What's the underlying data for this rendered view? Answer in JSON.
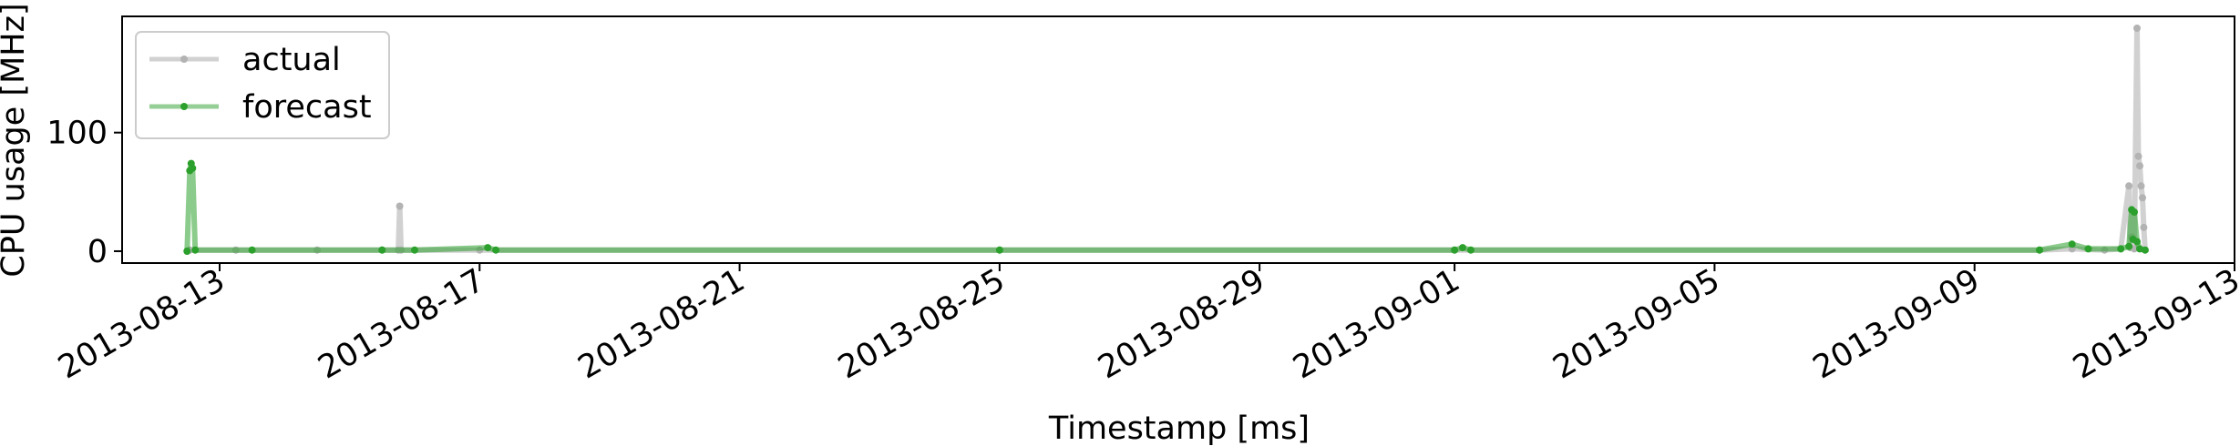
{
  "chart_data": {
    "type": "line",
    "xlabel": "Timestamp [ms]",
    "ylabel": "CPU usage [MHz]",
    "xlim": [
      "2013-08-11T12:00",
      "2013-09-13T00:00"
    ],
    "ylim": [
      -10,
      198
    ],
    "x_ticks": [
      "2013-08-13",
      "2013-08-17",
      "2013-08-21",
      "2013-08-25",
      "2013-08-29",
      "2013-09-01",
      "2013-09-05",
      "2013-09-09",
      "2013-09-13"
    ],
    "y_ticks": [
      0,
      100
    ],
    "grid": false,
    "legend": {
      "placement": "top-left",
      "entries": [
        "actual",
        "forecast"
      ]
    },
    "series": [
      {
        "name": "actual",
        "color": "#b3b3b3",
        "points": [
          [
            "2013-08-12T12:00",
            0
          ],
          [
            "2013-08-12T13:00",
            1
          ],
          [
            "2013-08-13T06:00",
            1
          ],
          [
            "2013-08-14T12:00",
            1
          ],
          [
            "2013-08-15T12:00",
            1
          ],
          [
            "2013-08-15T18:00",
            1
          ],
          [
            "2013-08-15T18:30",
            38
          ],
          [
            "2013-08-15T19:00",
            1
          ],
          [
            "2013-08-17T00:00",
            1
          ],
          [
            "2013-08-25T00:00",
            1
          ],
          [
            "2013-09-01T00:00",
            1
          ],
          [
            "2013-09-10T00:00",
            1
          ],
          [
            "2013-09-10T12:00",
            2
          ],
          [
            "2013-09-11T00:00",
            1
          ],
          [
            "2013-09-11T06:00",
            2
          ],
          [
            "2013-09-11T09:00",
            55
          ],
          [
            "2013-09-11T09:30",
            3
          ],
          [
            "2013-09-11T10:00",
            12
          ],
          [
            "2013-09-11T11:00",
            2
          ],
          [
            "2013-09-11T12:00",
            188
          ],
          [
            "2013-09-11T12:30",
            80
          ],
          [
            "2013-09-11T13:00",
            72
          ],
          [
            "2013-09-11T13:30",
            55
          ],
          [
            "2013-09-11T14:00",
            45
          ],
          [
            "2013-09-11T14:30",
            20
          ],
          [
            "2013-09-11T15:00",
            1
          ]
        ]
      },
      {
        "name": "forecast",
        "color": "#2ca02c",
        "points": [
          [
            "2013-08-12T12:00",
            0
          ],
          [
            "2013-08-12T13:00",
            68
          ],
          [
            "2013-08-12T13:30",
            74
          ],
          [
            "2013-08-12T14:00",
            70
          ],
          [
            "2013-08-12T15:00",
            1
          ],
          [
            "2013-08-13T12:00",
            1
          ],
          [
            "2013-08-15T12:00",
            1
          ],
          [
            "2013-08-16T00:00",
            1
          ],
          [
            "2013-08-17T03:00",
            3
          ],
          [
            "2013-08-17T06:00",
            1
          ],
          [
            "2013-08-25T00:00",
            1
          ],
          [
            "2013-09-01T00:00",
            1
          ],
          [
            "2013-09-01T03:00",
            3
          ],
          [
            "2013-09-01T06:00",
            1
          ],
          [
            "2013-09-10T00:00",
            1
          ],
          [
            "2013-09-10T12:00",
            6
          ],
          [
            "2013-09-10T18:00",
            2
          ],
          [
            "2013-09-11T06:00",
            2
          ],
          [
            "2013-09-11T09:00",
            4
          ],
          [
            "2013-09-11T10:00",
            35
          ],
          [
            "2013-09-11T10:30",
            10
          ],
          [
            "2013-09-11T11:00",
            33
          ],
          [
            "2013-09-11T12:00",
            8
          ],
          [
            "2013-09-11T13:00",
            2
          ],
          [
            "2013-09-11T15:00",
            1
          ]
        ]
      }
    ]
  }
}
